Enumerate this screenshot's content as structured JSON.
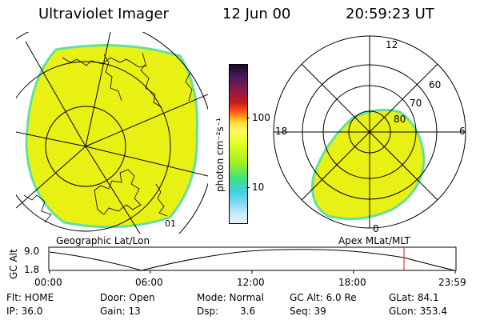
{
  "header": {
    "instrument": "Ultraviolet Imager",
    "date": "12 Jun 00",
    "time": "20:59:23 UT"
  },
  "colorbar": {
    "unit_label": "photon cm⁻²s⁻¹",
    "ticks": [
      "100",
      "10"
    ],
    "colors": [
      "#1a0a2e",
      "#4a1a5a",
      "#8a1a4a",
      "#c81a1a",
      "#ff4a1a",
      "#ffa01a",
      "#ffe040",
      "#fff860",
      "#e0ff20",
      "#a0f020",
      "#40e080",
      "#40d0e0",
      "#80d8f0",
      "#c0e8f8",
      "#e8f2f8"
    ]
  },
  "left_map": {
    "caption": "Geographic Lat/Lon",
    "lon_label": "01",
    "fill_color": "#e8f014",
    "edge_color": "#62e0a0"
  },
  "right_map": {
    "caption": "Apex MLat/MLT",
    "mlt_labels": {
      "top": "12",
      "left": "18",
      "right": "6",
      "bottom": "0"
    },
    "lat_labels": [
      "60",
      "70",
      "80"
    ],
    "fill_color": "#e8f014",
    "edge_color": "#62e0a0"
  },
  "altitude_plot": {
    "ylabel": "GC Alt",
    "yticks": [
      "9.0",
      "1.8"
    ],
    "xticks": [
      "00:00",
      "06:00",
      "12:00",
      "18:00",
      "23:59"
    ],
    "marker_color": "#cc1a1a"
  },
  "info": {
    "flt": "Flt: HOME",
    "ip": "IP: 36.0",
    "door": "Door: Open",
    "gain": "Gain: 13",
    "mode": "Mode: Normal",
    "dsp_label": "Dsp:",
    "dsp_value": "3.6",
    "gc_alt": "GC Alt: 6.0 Re",
    "seq": "Seq: 39",
    "glat": "GLat: 84.1",
    "glon": "GLon: 353.4"
  }
}
